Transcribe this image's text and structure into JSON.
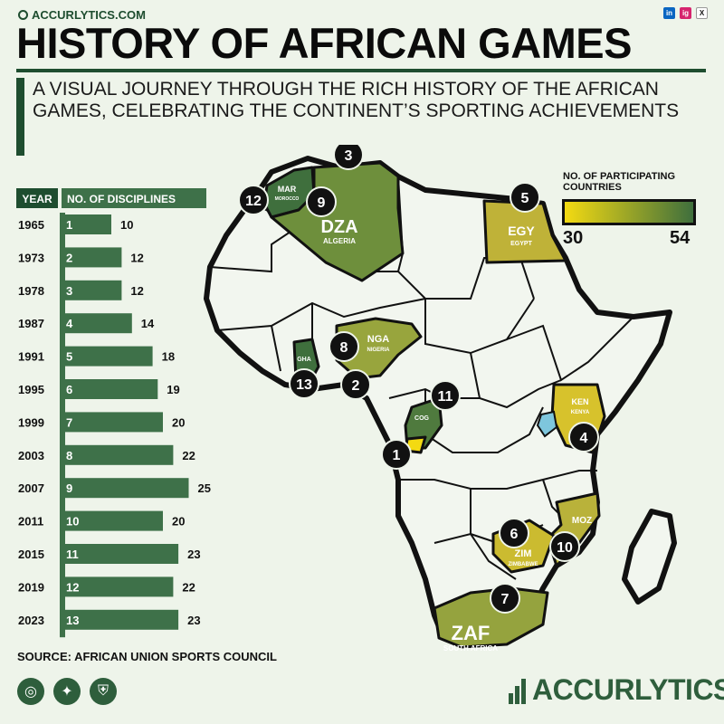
{
  "header": {
    "site": "ACCURLYTICS.COM",
    "title": "HISTORY OF AFRICAN GAMES",
    "subtitle": "A VISUAL JOURNEY THROUGH THE RICH HISTORY OF THE AFRICAN GAMES, CELEBRATING THE CONTINENT’S SPORTING ACHIEVEMENTS",
    "socials": [
      "in",
      "ig",
      "X"
    ]
  },
  "chart_data": {
    "type": "bar",
    "orientation": "horizontal",
    "category_header": "YEAR",
    "value_header": "NO. OF DISCIPLINES",
    "categories": [
      "1965",
      "1973",
      "1978",
      "1987",
      "1991",
      "1995",
      "1999",
      "2003",
      "2007",
      "2011",
      "2015",
      "2019",
      "2023"
    ],
    "edition": [
      1,
      2,
      3,
      4,
      5,
      6,
      7,
      8,
      9,
      10,
      11,
      12,
      13
    ],
    "values": [
      10,
      12,
      12,
      14,
      18,
      19,
      20,
      22,
      25,
      20,
      23,
      22,
      23
    ],
    "bar_color": "#3e7149"
  },
  "map": {
    "legend": {
      "title": "NO. OF PARTICIPATING COUNTRIES",
      "min": "30",
      "max": "54",
      "min_color": "#f3da12",
      "max_color": "#3f6f3d"
    },
    "countries": [
      {
        "code": "MAR",
        "name": "MOROCCO",
        "color": "#3f6f3d"
      },
      {
        "code": "DZA",
        "name": "ALGERIA",
        "color": "#6e8f3c"
      },
      {
        "code": "EGY",
        "name": "EGYPT",
        "color": "#bfb238"
      },
      {
        "code": "NGA",
        "name": "NIGERIA",
        "color": "#98a53d"
      },
      {
        "code": "GHA",
        "name": "",
        "color": "#3f6f3d"
      },
      {
        "code": "COG",
        "name": "",
        "color": "#4f7a3e"
      },
      {
        "code": "KEN",
        "name": "KENYA",
        "color": "#d7c22c"
      },
      {
        "code": "MOZ",
        "name": "",
        "color": "#b9b23a"
      },
      {
        "code": "ZIM",
        "name": "ZIMBABWE",
        "color": "#cbbb30"
      },
      {
        "code": "ZAF",
        "name": "SOUTH AFRICA",
        "color": "#95a33e"
      }
    ],
    "hosts": [
      "1",
      "2",
      "3",
      "4",
      "5",
      "6",
      "7",
      "8",
      "9",
      "10",
      "11",
      "12",
      "13"
    ]
  },
  "footer": {
    "source": "SOURCE: AFRICAN UNION SPORTS COUNCIL",
    "logo": "ACCURLYTICS",
    "icons": [
      "target-icon",
      "ball-icon",
      "shield-icon"
    ]
  }
}
